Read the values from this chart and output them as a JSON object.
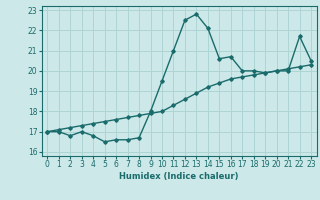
{
  "xlabel": "Humidex (Indice chaleur)",
  "ylabel": "",
  "background_color": "#cce8e8",
  "line_color": "#1a6b6b",
  "grid_color": "#aed4d4",
  "x_data": [
    0,
    1,
    2,
    3,
    4,
    5,
    6,
    7,
    8,
    9,
    10,
    11,
    12,
    13,
    14,
    15,
    16,
    17,
    18,
    19,
    20,
    21,
    22,
    23
  ],
  "y_curve": [
    17.0,
    17.0,
    16.8,
    17.0,
    16.8,
    16.5,
    16.6,
    16.6,
    16.7,
    18.0,
    19.5,
    21.0,
    22.5,
    22.8,
    22.1,
    20.6,
    20.7,
    20.0,
    20.0,
    19.9,
    20.0,
    20.0,
    21.7,
    20.5
  ],
  "y_linear": [
    17.0,
    17.1,
    17.2,
    17.3,
    17.4,
    17.5,
    17.6,
    17.7,
    17.8,
    17.9,
    18.0,
    18.3,
    18.6,
    18.9,
    19.2,
    19.4,
    19.6,
    19.7,
    19.8,
    19.9,
    20.0,
    20.1,
    20.2,
    20.3
  ],
  "ylim": [
    15.8,
    23.2
  ],
  "xlim": [
    -0.5,
    23.5
  ],
  "yticks": [
    16,
    17,
    18,
    19,
    20,
    21,
    22,
    23
  ],
  "xticks": [
    0,
    1,
    2,
    3,
    4,
    5,
    6,
    7,
    8,
    9,
    10,
    11,
    12,
    13,
    14,
    15,
    16,
    17,
    18,
    19,
    20,
    21,
    22,
    23
  ],
  "xlabel_fontsize": 6.0,
  "tick_fontsize": 5.5
}
